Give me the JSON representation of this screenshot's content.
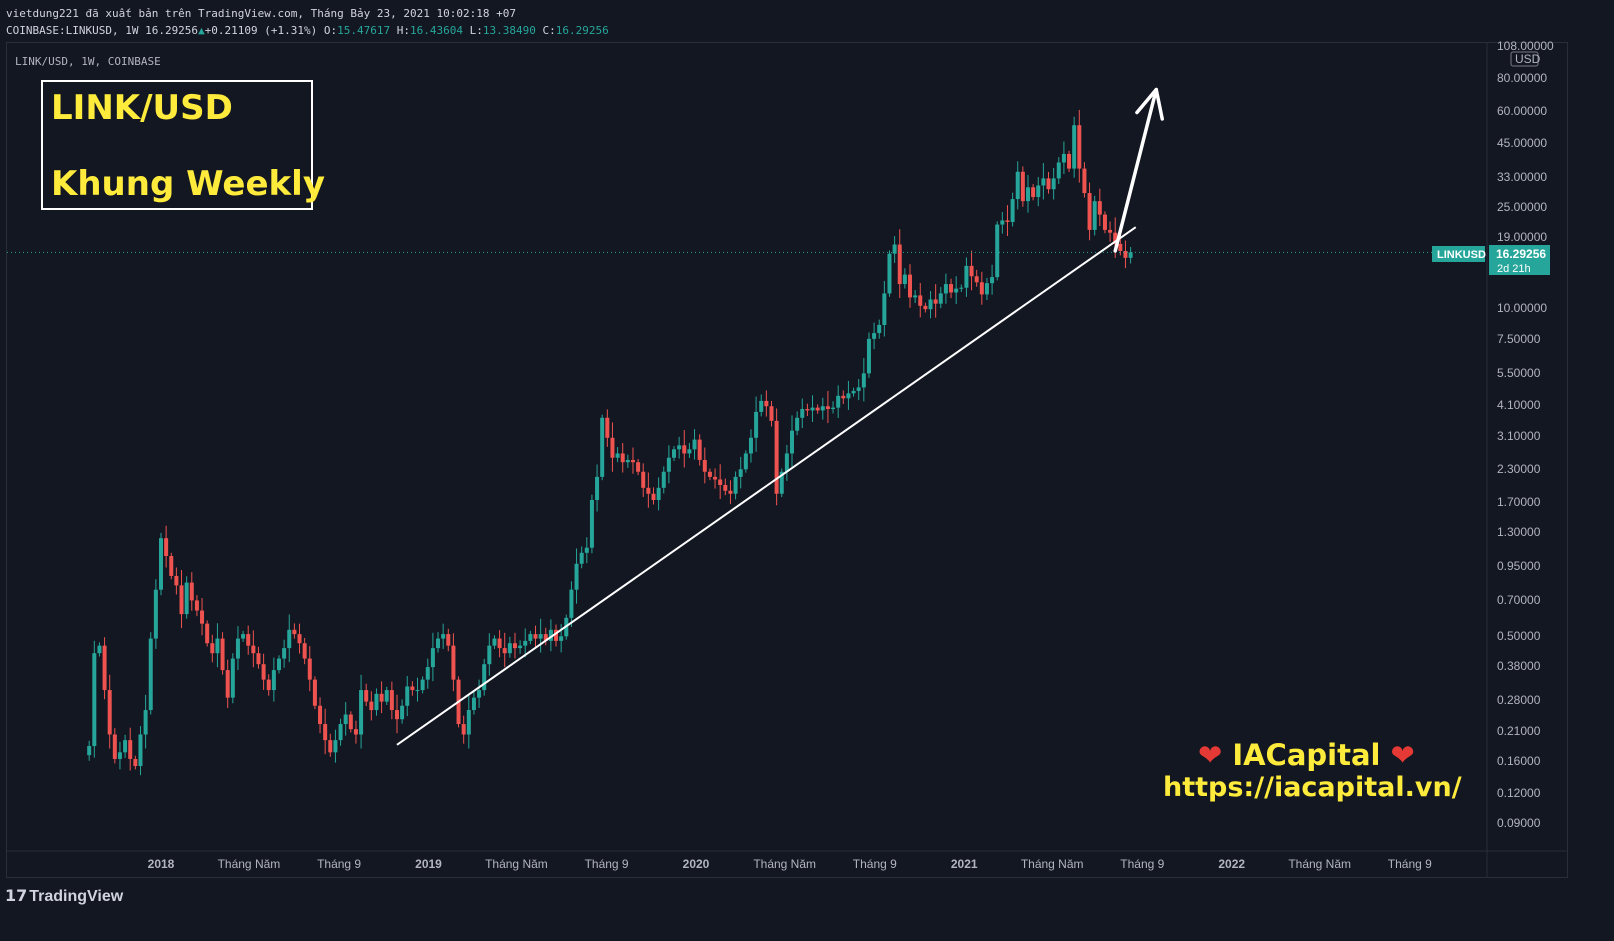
{
  "header": {
    "line1": "vietdung221 đã xuất bản trên TradingView.com, Tháng Bảy 23, 2021 10:02:18 +07",
    "symbol_full": "COINBASE:LINKUSD, 1W 16.29256",
    "change": "+0.21109 (+1.31%)",
    "o_label": "O:",
    "o_value": "15.47617",
    "h_label": "H:",
    "h_value": "16.43604",
    "l_label": "L:",
    "l_value": "13.38490",
    "c_label": "C:",
    "c_value": "16.29256"
  },
  "chart_symbol_line": "LINK/USD, 1W, COINBASE",
  "title_box": {
    "line1": "LINK/USD",
    "line2": "Khung Weekly"
  },
  "brand": {
    "name": "IACapital",
    "url": "https://iacapital.vn/"
  },
  "price_tag": {
    "symbol": "LINKUSD",
    "price": "16.29256",
    "countdown": "2d 21h"
  },
  "axis_unit": "USD",
  "footer": {
    "brand": "TradingView"
  },
  "colors": {
    "background": "#131722",
    "up": "#26a69a",
    "down": "#ef5350",
    "annotation": "#ffeb3b",
    "trendline": "#ffffff"
  },
  "chart_data": {
    "type": "candlestick",
    "symbol": "LINKUSD",
    "exchange": "COINBASE",
    "interval": "1W",
    "yscale": "log",
    "ylim": [
      0.068,
      108.0
    ],
    "y_ticks": [
      "108.00000",
      "80.00000",
      "60.00000",
      "45.00000",
      "33.00000",
      "25.00000",
      "19.00000",
      "16.29256",
      "10.00000",
      "7.50000",
      "5.50000",
      "4.10000",
      "3.10000",
      "2.30000",
      "1.70000",
      "1.30000",
      "0.95000",
      "0.70000",
      "0.50000",
      "0.38000",
      "0.28000",
      "0.21000",
      "0.16000",
      "0.12000",
      "0.09000"
    ],
    "x_ticks": [
      "2018",
      "Tháng Năm",
      "Tháng 9",
      "2019",
      "Tháng Năm",
      "Tháng 9",
      "2020",
      "Tháng Năm",
      "Tháng 9",
      "2021",
      "Tháng Năm",
      "Tháng 9",
      "2022",
      "Tháng Năm",
      "Tháng 9"
    ],
    "x_tick_dates": [
      "2018-01-01",
      "2018-05-01",
      "2018-09-01",
      "2019-01-01",
      "2019-05-01",
      "2019-09-01",
      "2020-01-01",
      "2020-05-01",
      "2020-09-01",
      "2021-01-01",
      "2021-05-01",
      "2021-09-01",
      "2022-01-01",
      "2022-05-01",
      "2022-09-01"
    ],
    "last_price": 16.29256,
    "closes_weekly": {
      "start": "2017-09-25",
      "values": [
        0.18,
        0.42,
        0.45,
        0.3,
        0.2,
        0.16,
        0.17,
        0.19,
        0.16,
        0.15,
        0.2,
        0.25,
        0.48,
        0.75,
        1.2,
        1.02,
        0.85,
        0.78,
        0.6,
        0.8,
        0.68,
        0.62,
        0.55,
        0.46,
        0.42,
        0.48,
        0.36,
        0.28,
        0.4,
        0.48,
        0.5,
        0.45,
        0.42,
        0.38,
        0.33,
        0.3,
        0.36,
        0.4,
        0.44,
        0.52,
        0.5,
        0.46,
        0.4,
        0.33,
        0.26,
        0.22,
        0.19,
        0.17,
        0.19,
        0.22,
        0.24,
        0.21,
        0.2,
        0.3,
        0.27,
        0.25,
        0.29,
        0.27,
        0.3,
        0.25,
        0.23,
        0.26,
        0.31,
        0.3,
        0.3,
        0.33,
        0.37,
        0.44,
        0.48,
        0.5,
        0.45,
        0.33,
        0.22,
        0.2,
        0.25,
        0.28,
        0.3,
        0.38,
        0.45,
        0.48,
        0.44,
        0.42,
        0.46,
        0.44,
        0.45,
        0.47,
        0.5,
        0.48,
        0.5,
        0.47,
        0.52,
        0.47,
        0.49,
        0.58,
        0.75,
        0.95,
        1.05,
        1.1,
        1.7,
        2.1,
        3.6,
        3.0,
        2.5,
        2.6,
        2.4,
        2.45,
        2.4,
        2.2,
        1.9,
        1.8,
        1.7,
        1.9,
        2.2,
        2.5,
        2.7,
        2.8,
        2.6,
        2.7,
        2.95,
        2.45,
        2.2,
        2.1,
        2.05,
        1.95,
        1.85,
        1.8,
        2.1,
        2.25,
        2.6,
        3.0,
        3.8,
        4.2,
        4.0,
        3.5,
        1.8,
        2.2,
        2.6,
        3.2,
        3.6,
        3.9,
        3.85,
        3.95,
        3.85,
        4.0,
        3.9,
        3.95,
        4.4,
        4.3,
        4.5,
        4.6,
        4.75,
        5.4,
        7.4,
        7.8,
        8.4,
        11.2,
        16.1,
        17.5,
        12.2,
        13.3,
        10.8,
        11.0,
        10.0,
        9.7,
        10.6,
        10.2,
        11.2,
        12.2,
        11.3,
        11.7,
        11.8,
        14.4,
        13.1,
        12.4,
        11.1,
        12.3,
        13.0,
        21.0,
        21.8,
        21.5,
        26.5,
        34.0,
        26.0,
        29.5,
        27.0,
        30.0,
        32.0,
        29.0,
        32.0,
        37.0,
        40.0,
        35.0,
        52.0,
        35.0,
        28.0,
        20.0,
        26.0,
        23.0,
        20.0,
        19.5,
        17.6,
        16.5,
        15.5,
        16.29256
      ]
    },
    "annotations": [
      {
        "type": "trendline",
        "from": [
          "2018-11-19",
          0.182
        ],
        "to": [
          "2021-08-23",
          20.5
        ]
      },
      {
        "type": "arrow",
        "from": [
          "2021-07-26",
          16.5
        ],
        "to": [
          "2021-09-20",
          72.0
        ]
      }
    ]
  }
}
